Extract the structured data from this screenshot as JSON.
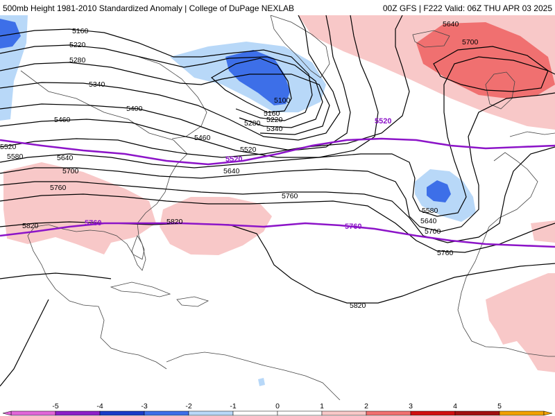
{
  "header": {
    "left_title": "500mb Height 1981-2010 Standardized Anomaly | College of DuPage NEXLAB",
    "right_title": "00Z GFS | F222 Valid: 06Z THU APR 03 2025"
  },
  "colors": {
    "anom_neg_5": "#e066d8",
    "anom_neg_4": "#8b20c8",
    "anom_neg_3": "#1a3cc8",
    "anom_neg_2": "#3d6fe8",
    "anom_neg_1": "#b8d8f8",
    "anom_0": "#ffffff",
    "anom_pos_1": "#f8c8c8",
    "anom_pos_2": "#f07070",
    "anom_pos_3": "#d01010",
    "anom_pos_4": "#a01010",
    "anom_pos_5": "#f0a000",
    "climo_contour": "#8c14c8",
    "height_contour": "#000000",
    "coastline": "#444444"
  },
  "contours": {
    "height_labels": [
      "5100",
      "5160",
      "5220",
      "5280",
      "5340",
      "5400",
      "5460",
      "5520",
      "5580",
      "5640",
      "5700",
      "5760",
      "5820"
    ],
    "climo_labels": [
      "5520",
      "5760"
    ]
  },
  "colorbar": {
    "ticks": [
      "-5",
      "-4",
      "-3",
      "-2",
      "-1",
      "0",
      "1",
      "2",
      "3",
      "4",
      "5"
    ]
  }
}
